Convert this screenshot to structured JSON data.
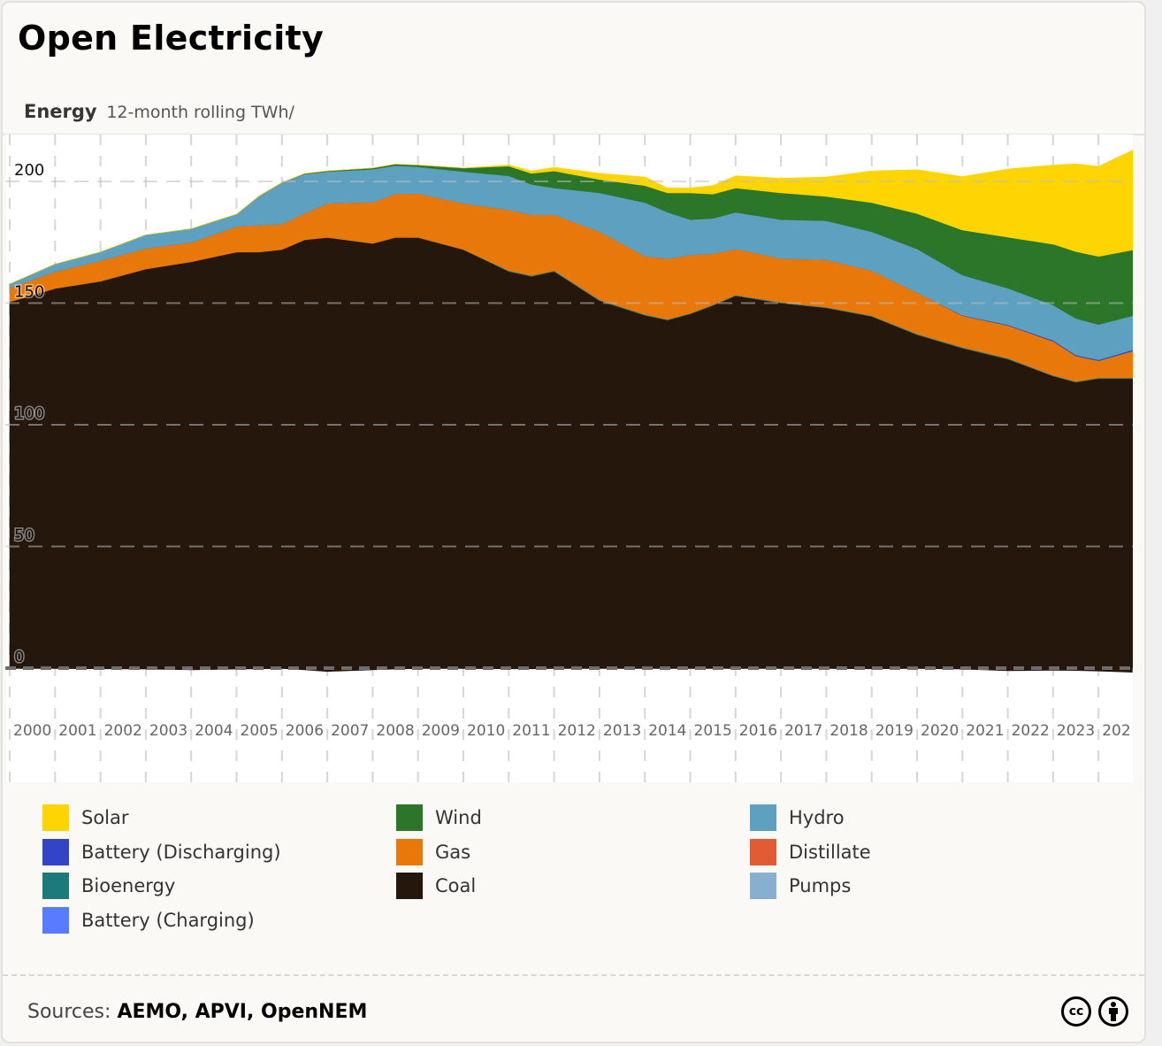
{
  "header": {
    "title": "Open Electricity",
    "subtitle_bold": "Energy",
    "subtitle_unit": "12-month rolling TWh/"
  },
  "footer": {
    "sources_label": "Sources:",
    "sources_value": "AEMO, APVI, OpenNEM",
    "icons": [
      "creative-commons-icon",
      "attribution-icon"
    ],
    "cc_glyph": "cc"
  },
  "legend": [
    {
      "label": "Solar",
      "color": "#FED500"
    },
    {
      "label": "Wind",
      "color": "#2C7629"
    },
    {
      "label": "Hydro",
      "color": "#5EA0C0"
    },
    {
      "label": "Battery (Discharging)",
      "color": "#3245C9"
    },
    {
      "label": "Gas",
      "color": "#E87809"
    },
    {
      "label": "Distillate",
      "color": "#E15C34"
    },
    {
      "label": "Bioenergy",
      "color": "#1D7A7A"
    },
    {
      "label": "Coal",
      "color": "#25170C"
    },
    {
      "label": "Pumps",
      "color": "#88AFD0"
    },
    {
      "label": "Battery (Charging)",
      "color": "#577CFF"
    }
  ],
  "chart_data": {
    "type": "area",
    "stacked": true,
    "title": "Energy",
    "subtitle": "12-month rolling TWh/",
    "xlabel": "",
    "ylabel": "TWh",
    "ylim": [
      -2,
      220
    ],
    "xlim": [
      2000,
      2024.75
    ],
    "grid": true,
    "legend_position": "bottom",
    "y_ticks": [
      0,
      50,
      100,
      150,
      200
    ],
    "x_tick_labels": [
      "2000",
      "2001",
      "2002",
      "2003",
      "2004",
      "2005",
      "2006",
      "2007",
      "2008",
      "2009",
      "2010",
      "2011",
      "2012",
      "2013",
      "2014",
      "2015",
      "2016",
      "2017",
      "2018",
      "2019",
      "2020",
      "2021",
      "2022",
      "2023",
      "202"
    ],
    "x": [
      2000,
      2001,
      2002,
      2003,
      2004,
      2005,
      2005.5,
      2006,
      2006.5,
      2007,
      2008,
      2008.5,
      2009,
      2010,
      2011,
      2011.5,
      2012,
      2013,
      2014,
      2014.5,
      2015,
      2015.5,
      2016,
      2017,
      2018,
      2019,
      2020,
      2021,
      2022,
      2023,
      2023.5,
      2024,
      2024.75
    ],
    "series": [
      {
        "name": "Pumps",
        "color": "#25170C",
        "values": [
          -0.3,
          -0.3,
          -0.4,
          -0.5,
          -0.8,
          -0.5,
          -0.4,
          -0.3,
          -0.8,
          -1.5,
          -0.8,
          -0.5,
          -0.3,
          -0.3,
          -0.4,
          -0.4,
          -0.3,
          -0.3,
          -0.3,
          -0.3,
          -0.3,
          -0.3,
          -0.3,
          -0.3,
          -0.3,
          -0.4,
          -0.3,
          -0.5,
          -1.2,
          -1.0,
          -1.1,
          -1.3,
          -1.8
        ]
      },
      {
        "name": "Coal",
        "color": "#25170C",
        "values": [
          150.5,
          156,
          159,
          164,
          167,
          171,
          171,
          172,
          176,
          177,
          174.5,
          177,
          177,
          172,
          163,
          161,
          163,
          151,
          145,
          143,
          145.5,
          149,
          153,
          150,
          148,
          144.5,
          137,
          131.5,
          127,
          120,
          117.5,
          119,
          119
        ]
      },
      {
        "name": "Bioenergy",
        "color": "#1D7A7A",
        "values": [
          0,
          0,
          0,
          0,
          0,
          0,
          0,
          0,
          0,
          0,
          0,
          0,
          0,
          0,
          0.3,
          0.3,
          0.3,
          0.3,
          0.3,
          0.3,
          0.3,
          0.3,
          0.3,
          0.3,
          0.3,
          0.3,
          0.3,
          0.3,
          0.3,
          0.3,
          0.3,
          0.3,
          0.3
        ]
      },
      {
        "name": "Gas",
        "color": "#E87809",
        "values": [
          5.8,
          7,
          8.5,
          8.5,
          8,
          10.5,
          11,
          10.5,
          11,
          14,
          17,
          18,
          18,
          19,
          25,
          25,
          23,
          28,
          24,
          25,
          24,
          21,
          19,
          18,
          19.5,
          18.5,
          17,
          13,
          13.5,
          14,
          10.5,
          7,
          11
        ]
      },
      {
        "name": "Battery (Discharging)",
        "color": "#3245C9",
        "values": [
          0,
          0,
          0,
          0,
          0,
          0,
          0,
          0,
          0,
          0,
          0,
          0,
          0,
          0,
          0,
          0,
          0,
          0,
          0,
          0,
          0,
          0,
          0,
          0,
          0,
          0,
          0,
          0.2,
          0.3,
          0.4,
          0.4,
          0.4,
          0.5
        ]
      },
      {
        "name": "Hydro",
        "color": "#5EA0C0",
        "values": [
          1.5,
          3,
          3.5,
          5.5,
          5.5,
          5,
          12,
          17,
          16,
          13,
          13.5,
          11.5,
          11,
          13,
          14,
          12.5,
          11,
          16,
          22,
          19,
          14.5,
          14.5,
          15,
          16,
          16,
          16,
          18,
          16.5,
          15,
          14.5,
          15,
          14.5,
          14
        ]
      },
      {
        "name": "Wind",
        "color": "#2C7629",
        "values": [
          0,
          0,
          0,
          0,
          0,
          0,
          0,
          0,
          0.2,
          0.3,
          0.5,
          0.6,
          0.7,
          1.5,
          4,
          4.5,
          7,
          5.5,
          7,
          8,
          11,
          10,
          10,
          11,
          10,
          12,
          14.5,
          18.5,
          21,
          25,
          27.5,
          28,
          27
        ]
      },
      {
        "name": "Solar",
        "color": "#FED500",
        "values": [
          0,
          0,
          0,
          0,
          0,
          0,
          0,
          0,
          0,
          0,
          0,
          0,
          0,
          0,
          0.5,
          1,
          1.5,
          2.5,
          3.5,
          2,
          2,
          3.5,
          5,
          6,
          8,
          13,
          18,
          22,
          28,
          32.5,
          36,
          37,
          41
        ]
      },
      {
        "name": "Distillate",
        "color": "#E15C34",
        "values": [
          0,
          0,
          0,
          0,
          0,
          0,
          0,
          0,
          0,
          0,
          0,
          0,
          0,
          0,
          0,
          0,
          0,
          0,
          0,
          0,
          0,
          0,
          0,
          0,
          0,
          0,
          0,
          0,
          0,
          0,
          0,
          0,
          0
        ]
      },
      {
        "name": "Battery (Charging)",
        "color": "#577CFF",
        "values": [
          0,
          0,
          0,
          0,
          0,
          0,
          0,
          0,
          0,
          0,
          0,
          0,
          0,
          0,
          0,
          0,
          0,
          0,
          0,
          0,
          0,
          0,
          0,
          0,
          0,
          0,
          0,
          0,
          0,
          0,
          0,
          0,
          0
        ]
      }
    ]
  }
}
